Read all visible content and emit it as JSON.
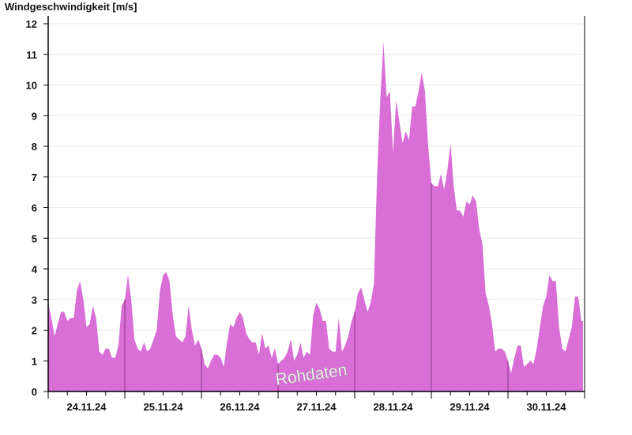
{
  "chart_data": {
    "type": "area",
    "title": "Windgeschwindigkeit [m/s]",
    "xlabel": "",
    "ylabel": "",
    "ylim": [
      0,
      12
    ],
    "yticks": [
      "0",
      "1",
      "2",
      "3",
      "4",
      "5",
      "6",
      "7",
      "8",
      "9",
      "10",
      "11",
      "12"
    ],
    "grid": true,
    "fill_color": "#d96ed6",
    "day_line_color": "#8a3a88",
    "watermark": "Rohdaten",
    "days": [
      {
        "date": "24.11.24",
        "hourly_values": [
          2.9,
          2.4,
          1.8,
          2.2,
          2.6,
          2.6,
          2.3,
          2.4,
          2.4,
          3.3,
          3.6,
          3.0,
          2.1,
          2.2,
          2.8,
          2.4,
          1.3,
          1.2,
          1.4,
          1.4,
          1.1,
          1.1,
          1.5,
          2.8
        ]
      },
      {
        "date": "25.11.24",
        "hourly_values": [
          3.0,
          3.8,
          3.0,
          1.7,
          1.4,
          1.3,
          1.6,
          1.3,
          1.4,
          1.7,
          2.0,
          3.3,
          3.8,
          3.9,
          3.6,
          2.5,
          1.8,
          1.7,
          1.6,
          1.8,
          2.8,
          2.0,
          1.5,
          1.7
        ]
      },
      {
        "date": "26.11.24",
        "hourly_values": [
          1.4,
          0.9,
          0.75,
          1.0,
          1.2,
          1.2,
          1.1,
          0.8,
          1.6,
          2.2,
          2.1,
          2.4,
          2.6,
          2.4,
          1.9,
          1.7,
          1.6,
          1.6,
          1.2,
          1.9,
          1.4,
          1.5,
          1.1,
          1.4
        ]
      },
      {
        "date": "27.11.24",
        "hourly_values": [
          0.9,
          1.0,
          1.1,
          1.3,
          1.7,
          1.0,
          1.2,
          1.6,
          1.1,
          1.3,
          1.2,
          2.5,
          2.9,
          2.7,
          2.3,
          2.3,
          1.4,
          1.3,
          1.3,
          2.4,
          1.3,
          1.5,
          1.8,
          2.3
        ]
      },
      {
        "date": "28.11.24",
        "hourly_values": [
          2.6,
          3.2,
          3.4,
          3.0,
          2.6,
          2.9,
          3.5,
          7.0,
          9.5,
          11.4,
          9.6,
          9.8,
          7.8,
          9.5,
          8.8,
          8.1,
          8.5,
          8.2,
          9.3,
          9.3,
          9.8,
          10.4,
          9.8,
          8.0
        ]
      },
      {
        "date": "29.11.24",
        "hourly_values": [
          6.8,
          6.7,
          6.7,
          7.1,
          6.6,
          7.2,
          8.1,
          6.7,
          5.9,
          5.9,
          5.7,
          6.2,
          6.1,
          6.4,
          6.2,
          5.3,
          4.8,
          3.2,
          2.8,
          2.2,
          1.3,
          1.4,
          1.4,
          1.3
        ]
      },
      {
        "date": "30.11.24",
        "hourly_values": [
          1.0,
          0.6,
          1.1,
          1.5,
          1.5,
          0.8,
          0.9,
          1.0,
          0.9,
          1.4,
          2.1,
          2.8,
          3.1,
          3.8,
          3.6,
          3.6,
          2.1,
          1.4,
          1.3,
          1.7,
          2.1,
          3.1,
          3.1,
          2.3
        ]
      }
    ]
  }
}
